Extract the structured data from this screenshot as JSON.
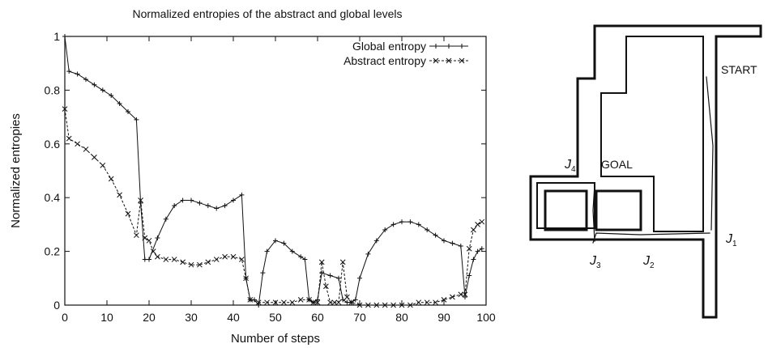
{
  "chart_data": {
    "type": "line",
    "title": "Normalized entropies of the abstract and global levels",
    "xlabel": "Number of steps",
    "ylabel": "Normalized entropies",
    "xlim": [
      0,
      100
    ],
    "ylim": [
      0,
      1
    ],
    "x_ticks": [
      "0",
      "10",
      "20",
      "30",
      "40",
      "50",
      "60",
      "70",
      "80",
      "90",
      "100"
    ],
    "y_ticks": [
      "0",
      "0.2",
      "0.4",
      "0.6",
      "0.8",
      "1"
    ],
    "grid": false,
    "legend_position": "top-right",
    "series": [
      {
        "name": "Global entropy",
        "marker": "plus",
        "line_style": "solid",
        "points": [
          [
            0,
            1.0
          ],
          [
            1,
            0.87
          ],
          [
            3,
            0.86
          ],
          [
            5,
            0.84
          ],
          [
            7,
            0.82
          ],
          [
            9,
            0.8
          ],
          [
            11,
            0.78
          ],
          [
            13,
            0.75
          ],
          [
            15,
            0.72
          ],
          [
            17,
            0.69
          ],
          [
            18,
            0.38
          ],
          [
            19,
            0.17
          ],
          [
            20,
            0.17
          ],
          [
            22,
            0.25
          ],
          [
            24,
            0.32
          ],
          [
            26,
            0.37
          ],
          [
            28,
            0.39
          ],
          [
            30,
            0.39
          ],
          [
            32,
            0.38
          ],
          [
            34,
            0.37
          ],
          [
            36,
            0.36
          ],
          [
            38,
            0.37
          ],
          [
            40,
            0.39
          ],
          [
            42,
            0.41
          ],
          [
            43,
            0.1
          ],
          [
            44,
            0.02
          ],
          [
            45,
            0.02
          ],
          [
            46,
            0.0
          ],
          [
            47,
            0.12
          ],
          [
            48,
            0.2
          ],
          [
            50,
            0.24
          ],
          [
            52,
            0.23
          ],
          [
            54,
            0.2
          ],
          [
            56,
            0.18
          ],
          [
            57,
            0.17
          ],
          [
            58,
            0.02
          ],
          [
            59,
            0.01
          ],
          [
            60,
            0.02
          ],
          [
            61,
            0.12
          ],
          [
            63,
            0.11
          ],
          [
            65,
            0.1
          ],
          [
            66,
            0.02
          ],
          [
            67,
            0.01
          ],
          [
            68,
            0.01
          ],
          [
            69,
            0.02
          ],
          [
            70,
            0.1
          ],
          [
            72,
            0.19
          ],
          [
            74,
            0.24
          ],
          [
            76,
            0.28
          ],
          [
            78,
            0.3
          ],
          [
            80,
            0.31
          ],
          [
            82,
            0.31
          ],
          [
            84,
            0.3
          ],
          [
            86,
            0.28
          ],
          [
            88,
            0.26
          ],
          [
            90,
            0.24
          ],
          [
            92,
            0.23
          ],
          [
            94,
            0.22
          ],
          [
            95,
            0.03
          ],
          [
            96,
            0.11
          ],
          [
            97,
            0.17
          ],
          [
            98,
            0.2
          ],
          [
            99,
            0.21
          ]
        ]
      },
      {
        "name": "Abstract entropy",
        "marker": "x",
        "line_style": "dashed",
        "points": [
          [
            0,
            0.73
          ],
          [
            1,
            0.62
          ],
          [
            3,
            0.6
          ],
          [
            5,
            0.58
          ],
          [
            7,
            0.55
          ],
          [
            9,
            0.52
          ],
          [
            11,
            0.47
          ],
          [
            13,
            0.41
          ],
          [
            15,
            0.34
          ],
          [
            17,
            0.26
          ],
          [
            18,
            0.39
          ],
          [
            19,
            0.25
          ],
          [
            20,
            0.24
          ],
          [
            21,
            0.2
          ],
          [
            22,
            0.18
          ],
          [
            24,
            0.17
          ],
          [
            26,
            0.17
          ],
          [
            28,
            0.16
          ],
          [
            30,
            0.15
          ],
          [
            32,
            0.15
          ],
          [
            34,
            0.16
          ],
          [
            36,
            0.17
          ],
          [
            38,
            0.18
          ],
          [
            40,
            0.18
          ],
          [
            42,
            0.17
          ],
          [
            43,
            0.1
          ],
          [
            44,
            0.02
          ],
          [
            46,
            0.01
          ],
          [
            48,
            0.01
          ],
          [
            50,
            0.01
          ],
          [
            52,
            0.01
          ],
          [
            54,
            0.01
          ],
          [
            56,
            0.02
          ],
          [
            58,
            0.02
          ],
          [
            59,
            0.01
          ],
          [
            60,
            0.01
          ],
          [
            61,
            0.16
          ],
          [
            62,
            0.07
          ],
          [
            63,
            0.01
          ],
          [
            64,
            0.01
          ],
          [
            65,
            0.01
          ],
          [
            66,
            0.16
          ],
          [
            67,
            0.03
          ],
          [
            68,
            0.01
          ],
          [
            70,
            0.0
          ],
          [
            72,
            0.0
          ],
          [
            74,
            0.0
          ],
          [
            76,
            0.0
          ],
          [
            78,
            0.0
          ],
          [
            80,
            0.0
          ],
          [
            82,
            0.0
          ],
          [
            84,
            0.01
          ],
          [
            86,
            0.01
          ],
          [
            88,
            0.01
          ],
          [
            90,
            0.02
          ],
          [
            92,
            0.03
          ],
          [
            94,
            0.04
          ],
          [
            95,
            0.04
          ],
          [
            96,
            0.21
          ],
          [
            97,
            0.28
          ],
          [
            98,
            0.3
          ],
          [
            99,
            0.31
          ]
        ]
      }
    ]
  },
  "map": {
    "labels": {
      "start": "START",
      "goal": "GOAL",
      "j1": {
        "base": "J",
        "sub": "1"
      },
      "j2": {
        "base": "J",
        "sub": "2"
      },
      "j3": {
        "base": "J",
        "sub": "3"
      },
      "j4": {
        "base": "J",
        "sub": "4"
      }
    }
  }
}
